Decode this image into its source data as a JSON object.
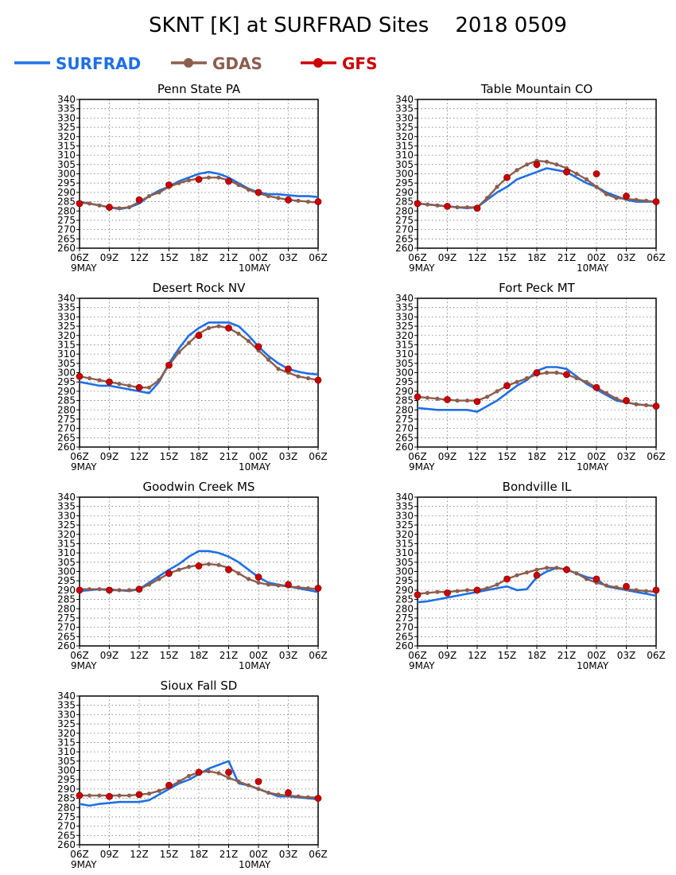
{
  "title": "SKNT [K] at SURFRAD Sites    2018 0509",
  "legend": [
    {
      "name": "SURFRAD",
      "color": "#1f6fe5",
      "marker": "none"
    },
    {
      "name": "GDAS",
      "color": "#8b5e4e",
      "marker": "circle"
    },
    {
      "name": "GFS",
      "color": "#cc0000",
      "marker": "circle"
    }
  ],
  "axes": {
    "x_ticks": [
      "06Z",
      "09Z",
      "12Z",
      "15Z",
      "18Z",
      "21Z",
      "00Z",
      "03Z",
      "06Z"
    ],
    "date_labels": [
      "9MAY",
      "10MAY"
    ],
    "y_ticks": [
      340,
      335,
      330,
      325,
      320,
      315,
      310,
      305,
      300,
      295,
      290,
      285,
      280,
      275,
      270,
      265,
      260
    ],
    "ylim": [
      260,
      340
    ],
    "x_hours_range": [
      6,
      30
    ]
  },
  "chart_data": [
    {
      "type": "line",
      "title": "Penn State PA",
      "series": [
        {
          "name": "SURFRAD",
          "x": [
            6,
            7,
            8,
            9,
            10,
            11,
            12,
            13,
            14,
            15,
            16,
            17,
            18,
            19,
            20,
            21,
            22,
            23,
            24,
            25,
            26,
            27,
            28,
            29,
            30
          ],
          "y": [
            285,
            284,
            283,
            282,
            281,
            282,
            284,
            288,
            291,
            293,
            296,
            298,
            300,
            301,
            300,
            298,
            295,
            292,
            290,
            289,
            289,
            288.5,
            288,
            288,
            287.5
          ]
        },
        {
          "name": "GDAS",
          "x": [
            6,
            7,
            8,
            9,
            10,
            11,
            12,
            13,
            14,
            15,
            16,
            17,
            18,
            19,
            20,
            21,
            22,
            23,
            24,
            25,
            26,
            27,
            28,
            29,
            30
          ],
          "y": [
            284.5,
            284,
            283,
            282,
            281.5,
            282,
            285,
            288,
            290,
            293,
            295,
            296.5,
            297.5,
            298,
            298,
            296.5,
            294,
            291.5,
            289.5,
            288,
            287,
            286,
            285.5,
            285,
            284.5
          ]
        },
        {
          "name": "GFS",
          "x": [
            6,
            9,
            12,
            15,
            18,
            21,
            24,
            27,
            30
          ],
          "y": [
            284,
            282,
            286,
            294,
            297,
            296,
            290,
            286,
            285
          ]
        }
      ]
    },
    {
      "type": "line",
      "title": "Table Mountain CO",
      "series": [
        {
          "name": "SURFRAD",
          "x": [
            6,
            7,
            8,
            9,
            10,
            11,
            12,
            13,
            14,
            15,
            16,
            17,
            18,
            19,
            20,
            21,
            22,
            23,
            24,
            25,
            26,
            27,
            28,
            29,
            30
          ],
          "y": [
            284,
            283.5,
            283,
            282.5,
            282,
            281.5,
            282,
            286,
            290,
            293,
            297,
            299,
            301,
            303,
            302,
            301,
            298,
            295,
            293,
            290,
            288,
            286,
            285,
            285,
            285
          ]
        },
        {
          "name": "GDAS",
          "x": [
            6,
            7,
            8,
            9,
            10,
            11,
            12,
            13,
            14,
            15,
            16,
            17,
            18,
            19,
            20,
            21,
            22,
            23,
            24,
            25,
            26,
            27,
            28,
            29,
            30
          ],
          "y": [
            284,
            283.5,
            283,
            282.5,
            282,
            282,
            282,
            287,
            293,
            298,
            302,
            305,
            307,
            306.5,
            305,
            303,
            300,
            297,
            293,
            289,
            287,
            286.5,
            286,
            285.5,
            285
          ]
        },
        {
          "name": "GFS",
          "x": [
            6,
            9,
            12,
            15,
            18,
            21,
            24,
            27,
            30
          ],
          "y": [
            284,
            282.5,
            281.5,
            298,
            305,
            301,
            300,
            288,
            285
          ]
        }
      ]
    },
    {
      "type": "line",
      "title": "Desert Rock NV",
      "series": [
        {
          "name": "SURFRAD",
          "x": [
            6,
            7,
            8,
            9,
            10,
            11,
            12,
            13,
            14,
            15,
            16,
            17,
            18,
            19,
            20,
            21,
            22,
            23,
            24,
            25,
            26,
            27,
            28,
            29,
            30
          ],
          "y": [
            295,
            294,
            293,
            293,
            292,
            291,
            290,
            289,
            295,
            305,
            313,
            320,
            324,
            327,
            327,
            327,
            325,
            320,
            314,
            309,
            305,
            302,
            300.5,
            299.5,
            299
          ]
        },
        {
          "name": "GDAS",
          "x": [
            6,
            7,
            8,
            9,
            10,
            11,
            12,
            13,
            14,
            15,
            16,
            17,
            18,
            19,
            20,
            21,
            22,
            23,
            24,
            25,
            26,
            27,
            28,
            29,
            30
          ],
          "y": [
            298,
            297,
            296,
            295,
            294,
            293,
            292,
            292,
            296,
            304,
            311,
            316,
            321,
            324,
            325,
            324,
            321,
            317,
            312,
            307,
            302,
            300,
            298,
            297,
            296
          ]
        },
        {
          "name": "GFS",
          "x": [
            6,
            9,
            12,
            15,
            18,
            21,
            24,
            27,
            30
          ],
          "y": [
            298,
            295,
            292,
            304,
            320,
            324,
            314,
            302,
            296
          ]
        }
      ]
    },
    {
      "type": "line",
      "title": "Fort Peck MT",
      "series": [
        {
          "name": "SURFRAD",
          "x": [
            6,
            7,
            8,
            9,
            10,
            11,
            12,
            13,
            14,
            15,
            16,
            17,
            18,
            19,
            20,
            21,
            22,
            23,
            24,
            25,
            26,
            27,
            28,
            29,
            30
          ],
          "y": [
            281,
            280.5,
            280,
            280,
            280,
            280,
            279,
            282,
            285,
            289,
            293,
            296,
            301,
            303,
            303,
            302,
            298,
            294,
            291,
            288,
            285,
            284,
            283,
            282.5,
            282
          ]
        },
        {
          "name": "GDAS",
          "x": [
            6,
            7,
            8,
            9,
            10,
            11,
            12,
            13,
            14,
            15,
            16,
            17,
            18,
            19,
            20,
            21,
            22,
            23,
            24,
            25,
            26,
            27,
            28,
            29,
            30
          ],
          "y": [
            287,
            286.5,
            286,
            285.5,
            285,
            285,
            285,
            287,
            290,
            293,
            295,
            297,
            299,
            300,
            300,
            299,
            297,
            295,
            292,
            289,
            286,
            284,
            283,
            282.5,
            282
          ]
        },
        {
          "name": "GFS",
          "x": [
            6,
            9,
            12,
            15,
            18,
            21,
            24,
            27,
            30
          ],
          "y": [
            287,
            285.5,
            284.5,
            293,
            300,
            299,
            292,
            285,
            282
          ]
        }
      ]
    },
    {
      "type": "line",
      "title": "Goodwin Creek MS",
      "series": [
        {
          "name": "SURFRAD",
          "x": [
            6,
            7,
            8,
            9,
            10,
            11,
            12,
            13,
            14,
            15,
            16,
            17,
            18,
            19,
            20,
            21,
            22,
            23,
            24,
            25,
            26,
            27,
            28,
            29,
            30
          ],
          "y": [
            289.5,
            290,
            290.5,
            290,
            290,
            289.5,
            290.5,
            294,
            297.5,
            301,
            304,
            308,
            311,
            311,
            310,
            308,
            305,
            301,
            297,
            294,
            293,
            292,
            291,
            290,
            289
          ]
        },
        {
          "name": "GDAS",
          "x": [
            6,
            7,
            8,
            9,
            10,
            11,
            12,
            13,
            14,
            15,
            16,
            17,
            18,
            19,
            20,
            21,
            22,
            23,
            24,
            25,
            26,
            27,
            28,
            29,
            30
          ],
          "y": [
            290.5,
            290.5,
            290.5,
            290.5,
            290,
            290,
            290.5,
            293,
            296,
            299,
            301,
            302.5,
            303.5,
            304,
            303.5,
            302,
            299,
            296,
            294,
            293,
            292.5,
            292,
            291.5,
            291,
            290.5
          ]
        },
        {
          "name": "GFS",
          "x": [
            6,
            9,
            12,
            15,
            18,
            21,
            24,
            27,
            30
          ],
          "y": [
            290,
            290,
            290.5,
            299,
            303,
            301,
            297,
            293,
            291
          ]
        }
      ]
    },
    {
      "type": "line",
      "title": "Bondville IL",
      "series": [
        {
          "name": "SURFRAD",
          "x": [
            6,
            7,
            8,
            9,
            10,
            11,
            12,
            13,
            14,
            15,
            16,
            17,
            18,
            19,
            20,
            21,
            22,
            23,
            24,
            25,
            26,
            27,
            28,
            29,
            30
          ],
          "y": [
            283.5,
            284,
            285,
            286,
            287,
            288,
            289,
            290,
            291,
            292,
            290,
            290.5,
            297,
            300,
            302,
            301,
            299,
            297,
            296,
            292,
            291,
            290,
            289,
            288,
            287
          ]
        },
        {
          "name": "GDAS",
          "x": [
            6,
            7,
            8,
            9,
            10,
            11,
            12,
            13,
            14,
            15,
            16,
            17,
            18,
            19,
            20,
            21,
            22,
            23,
            24,
            25,
            26,
            27,
            28,
            29,
            30
          ],
          "y": [
            288,
            288.5,
            289,
            289,
            289.5,
            290,
            290,
            291,
            293,
            296,
            298,
            299.5,
            301,
            302,
            302,
            301,
            299,
            296,
            294,
            292.5,
            291.5,
            290.5,
            290,
            289.5,
            289
          ]
        },
        {
          "name": "GFS",
          "x": [
            6,
            9,
            12,
            15,
            18,
            21,
            24,
            27,
            30
          ],
          "y": [
            287.5,
            288.5,
            290,
            296,
            298,
            301,
            296,
            292,
            290
          ]
        }
      ]
    },
    {
      "type": "line",
      "title": "Sioux Fall SD",
      "series": [
        {
          "name": "SURFRAD",
          "x": [
            6,
            7,
            8,
            9,
            10,
            11,
            12,
            13,
            14,
            15,
            16,
            17,
            18,
            19,
            20,
            21,
            22,
            23,
            24,
            25,
            26,
            27,
            28,
            29,
            30
          ],
          "y": [
            282,
            281,
            282,
            282.5,
            283,
            283,
            283,
            284,
            287,
            290,
            293,
            295,
            298,
            301,
            303,
            305,
            293,
            292,
            290,
            288,
            286,
            286,
            285.5,
            285,
            284.5
          ]
        },
        {
          "name": "GDAS",
          "x": [
            6,
            7,
            8,
            9,
            10,
            11,
            12,
            13,
            14,
            15,
            16,
            17,
            18,
            19,
            20,
            21,
            22,
            23,
            24,
            25,
            26,
            27,
            28,
            29,
            30
          ],
          "y": [
            286.5,
            286.5,
            286.5,
            286.5,
            286.5,
            286.5,
            287,
            287.5,
            289,
            291,
            294,
            297,
            299,
            299.5,
            298.5,
            296,
            294,
            292,
            290,
            288,
            287,
            286.5,
            286,
            285.5,
            285.5
          ]
        },
        {
          "name": "GFS",
          "x": [
            6,
            9,
            12,
            15,
            18,
            21,
            24,
            27,
            30
          ],
          "y": [
            286.5,
            286,
            287,
            292,
            299,
            299,
            294,
            288,
            285
          ]
        }
      ]
    }
  ]
}
